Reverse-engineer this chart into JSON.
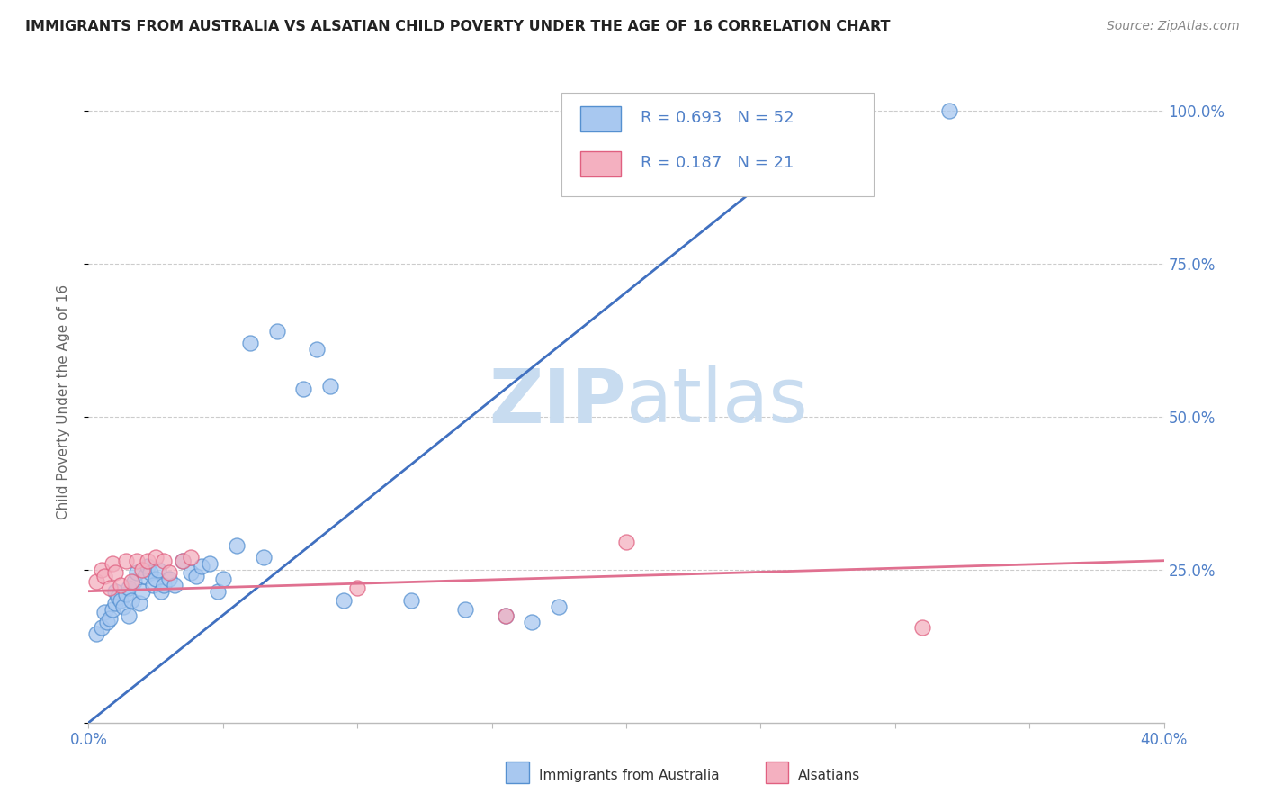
{
  "title": "IMMIGRANTS FROM AUSTRALIA VS ALSATIAN CHILD POVERTY UNDER THE AGE OF 16 CORRELATION CHART",
  "source": "Source: ZipAtlas.com",
  "ylabel": "Child Poverty Under the Age of 16",
  "xlim": [
    0.0,
    0.4
  ],
  "ylim": [
    0.0,
    1.05
  ],
  "xtick_positions": [
    0.0,
    0.05,
    0.1,
    0.15,
    0.2,
    0.25,
    0.3,
    0.35,
    0.4
  ],
  "xticklabels": [
    "0.0%",
    "",
    "",
    "",
    "",
    "",
    "",
    "",
    "40.0%"
  ],
  "ytick_positions": [
    0.0,
    0.25,
    0.5,
    0.75,
    1.0
  ],
  "yticklabels_right": [
    "",
    "25.0%",
    "50.0%",
    "75.0%",
    "100.0%"
  ],
  "R_blue": 0.693,
  "N_blue": 52,
  "R_pink": 0.187,
  "N_pink": 21,
  "blue_scatter_color": "#A8C8F0",
  "blue_edge_color": "#5590D0",
  "pink_scatter_color": "#F4B0C0",
  "pink_edge_color": "#E06080",
  "blue_line_color": "#4070C0",
  "pink_line_color": "#E07090",
  "grid_color": "#CCCCCC",
  "tick_label_color": "#5080C8",
  "watermark_color": "#C8DCF0",
  "background_color": "#FFFFFF",
  "blue_trend_x": [
    0.0,
    0.29
  ],
  "blue_trend_y": [
    0.0,
    1.02
  ],
  "pink_trend_x": [
    0.0,
    0.4
  ],
  "pink_trend_y": [
    0.215,
    0.265
  ],
  "blue_scatter_x": [
    0.003,
    0.005,
    0.006,
    0.007,
    0.008,
    0.009,
    0.01,
    0.01,
    0.011,
    0.012,
    0.013,
    0.014,
    0.015,
    0.015,
    0.016,
    0.017,
    0.018,
    0.019,
    0.02,
    0.021,
    0.022,
    0.023,
    0.024,
    0.025,
    0.026,
    0.027,
    0.028,
    0.03,
    0.032,
    0.035,
    0.038,
    0.04,
    0.042,
    0.045,
    0.048,
    0.05,
    0.055,
    0.06,
    0.065,
    0.07,
    0.08,
    0.085,
    0.09,
    0.095,
    0.12,
    0.14,
    0.155,
    0.165,
    0.175,
    0.28,
    0.285,
    0.32
  ],
  "blue_scatter_y": [
    0.145,
    0.155,
    0.18,
    0.165,
    0.17,
    0.185,
    0.195,
    0.215,
    0.205,
    0.2,
    0.19,
    0.21,
    0.175,
    0.22,
    0.2,
    0.23,
    0.245,
    0.195,
    0.215,
    0.24,
    0.255,
    0.245,
    0.225,
    0.235,
    0.25,
    0.215,
    0.225,
    0.235,
    0.225,
    0.265,
    0.245,
    0.24,
    0.255,
    0.26,
    0.215,
    0.235,
    0.29,
    0.62,
    0.27,
    0.64,
    0.545,
    0.61,
    0.55,
    0.2,
    0.2,
    0.185,
    0.175,
    0.165,
    0.19,
    0.975,
    0.99,
    1.0
  ],
  "pink_scatter_x": [
    0.003,
    0.005,
    0.006,
    0.008,
    0.009,
    0.01,
    0.012,
    0.014,
    0.016,
    0.018,
    0.02,
    0.022,
    0.025,
    0.028,
    0.03,
    0.035,
    0.038,
    0.1,
    0.155,
    0.2,
    0.31
  ],
  "pink_scatter_y": [
    0.23,
    0.25,
    0.24,
    0.22,
    0.26,
    0.245,
    0.225,
    0.265,
    0.23,
    0.265,
    0.25,
    0.265,
    0.27,
    0.265,
    0.245,
    0.265,
    0.27,
    0.22,
    0.175,
    0.295,
    0.155
  ]
}
